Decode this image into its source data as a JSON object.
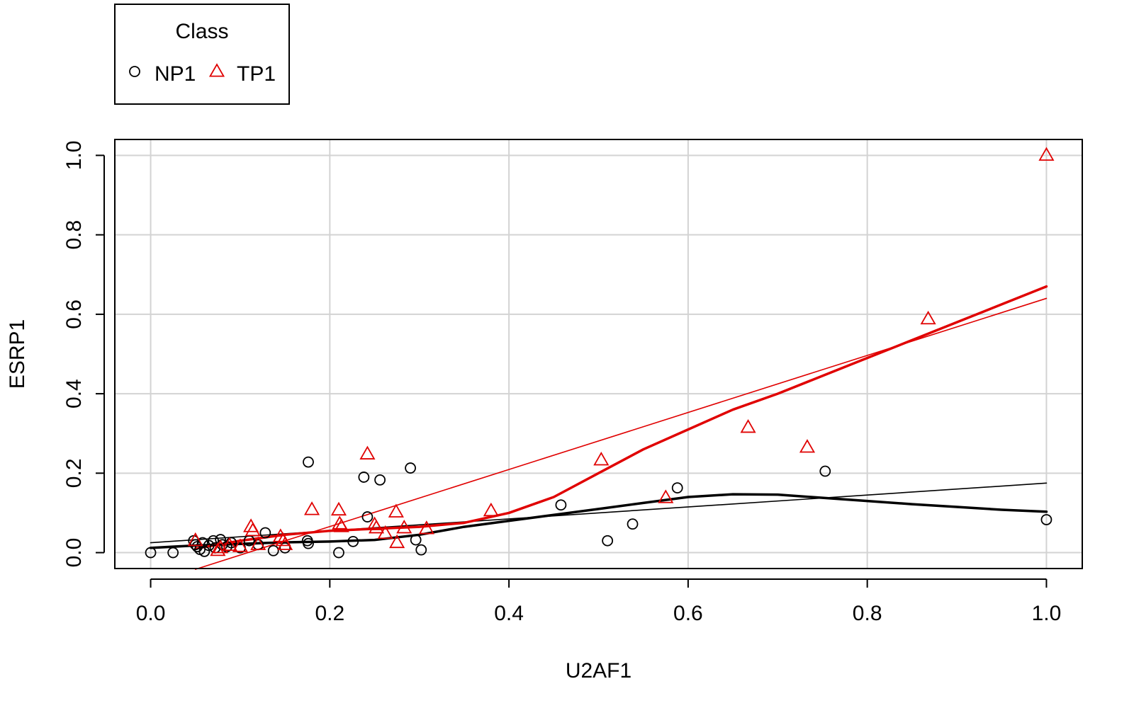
{
  "chart_data": {
    "type": "scatter",
    "title": "",
    "xlabel": "U2AF1",
    "ylabel": "ESRP1",
    "xlim": [
      0,
      1
    ],
    "ylim": [
      -0.04,
      1.04
    ],
    "x_ticks": [
      0.0,
      0.2,
      0.4,
      0.6,
      0.8,
      1.0
    ],
    "x_tick_labels": [
      "0.0",
      "0.2",
      "0.4",
      "0.6",
      "0.8",
      "1.0"
    ],
    "y_ticks": [
      0.0,
      0.2,
      0.4,
      0.6,
      0.8,
      1.0
    ],
    "y_tick_labels": [
      "0.0",
      "0.2",
      "0.4",
      "0.6",
      "0.8",
      "1.0"
    ],
    "grid": true,
    "legend": {
      "title": "Class",
      "placement": "top-left-outside",
      "entries": [
        {
          "name": "NP1",
          "marker": "circle",
          "color": "#000000"
        },
        {
          "name": "TP1",
          "marker": "triangle",
          "color": "#e00000"
        }
      ]
    },
    "series": [
      {
        "name": "NP1",
        "marker": "circle",
        "color": "#000000",
        "points": [
          [
            0.0,
            0.0
          ],
          [
            0.025,
            0.0
          ],
          [
            0.048,
            0.03
          ],
          [
            0.05,
            0.02
          ],
          [
            0.052,
            0.015
          ],
          [
            0.055,
            0.008
          ],
          [
            0.058,
            0.025
          ],
          [
            0.06,
            0.003
          ],
          [
            0.065,
            0.018
          ],
          [
            0.07,
            0.03
          ],
          [
            0.072,
            0.012
          ],
          [
            0.078,
            0.033
          ],
          [
            0.08,
            0.02
          ],
          [
            0.085,
            0.015
          ],
          [
            0.09,
            0.025
          ],
          [
            0.1,
            0.012
          ],
          [
            0.11,
            0.03
          ],
          [
            0.12,
            0.02
          ],
          [
            0.128,
            0.05
          ],
          [
            0.137,
            0.005
          ],
          [
            0.15,
            0.012
          ],
          [
            0.175,
            0.03
          ],
          [
            0.176,
            0.023
          ],
          [
            0.176,
            0.228
          ],
          [
            0.21,
            0.0
          ],
          [
            0.226,
            0.028
          ],
          [
            0.238,
            0.19
          ],
          [
            0.242,
            0.09
          ],
          [
            0.256,
            0.183
          ],
          [
            0.29,
            0.213
          ],
          [
            0.296,
            0.032
          ],
          [
            0.302,
            0.007
          ],
          [
            0.458,
            0.12
          ],
          [
            0.51,
            0.03
          ],
          [
            0.538,
            0.072
          ],
          [
            0.588,
            0.163
          ],
          [
            0.753,
            0.205
          ],
          [
            1.0,
            0.083
          ]
        ]
      },
      {
        "name": "TP1",
        "marker": "triangle",
        "color": "#e00000",
        "points": [
          [
            0.05,
            0.03
          ],
          [
            0.075,
            0.005
          ],
          [
            0.078,
            0.012
          ],
          [
            0.088,
            0.018
          ],
          [
            0.1,
            0.015
          ],
          [
            0.112,
            0.065
          ],
          [
            0.114,
            0.055
          ],
          [
            0.12,
            0.02
          ],
          [
            0.145,
            0.04
          ],
          [
            0.148,
            0.03
          ],
          [
            0.15,
            0.02
          ],
          [
            0.18,
            0.108
          ],
          [
            0.21,
            0.107
          ],
          [
            0.211,
            0.072
          ],
          [
            0.213,
            0.065
          ],
          [
            0.242,
            0.248
          ],
          [
            0.25,
            0.07
          ],
          [
            0.252,
            0.062
          ],
          [
            0.262,
            0.048
          ],
          [
            0.274,
            0.102
          ],
          [
            0.275,
            0.025
          ],
          [
            0.283,
            0.062
          ],
          [
            0.308,
            0.06
          ],
          [
            0.38,
            0.105
          ],
          [
            0.503,
            0.233
          ],
          [
            0.575,
            0.138
          ],
          [
            0.667,
            0.315
          ],
          [
            0.733,
            0.265
          ],
          [
            0.868,
            0.588
          ],
          [
            1.0,
            1.0
          ]
        ]
      }
    ],
    "lines": [
      {
        "name": "NP1 linear fit",
        "color": "#000000",
        "width": "thin",
        "points": [
          [
            0.0,
            0.025
          ],
          [
            1.0,
            0.175
          ]
        ]
      },
      {
        "name": "NP1 smooth fit",
        "color": "#000000",
        "width": "thick",
        "points": [
          [
            0.0,
            0.012
          ],
          [
            0.05,
            0.018
          ],
          [
            0.1,
            0.022
          ],
          [
            0.15,
            0.026
          ],
          [
            0.2,
            0.028
          ],
          [
            0.25,
            0.032
          ],
          [
            0.3,
            0.045
          ],
          [
            0.35,
            0.065
          ],
          [
            0.4,
            0.08
          ],
          [
            0.45,
            0.095
          ],
          [
            0.5,
            0.11
          ],
          [
            0.55,
            0.125
          ],
          [
            0.6,
            0.14
          ],
          [
            0.65,
            0.147
          ],
          [
            0.7,
            0.146
          ],
          [
            0.75,
            0.138
          ],
          [
            0.8,
            0.13
          ],
          [
            0.85,
            0.122
          ],
          [
            0.9,
            0.115
          ],
          [
            0.95,
            0.108
          ],
          [
            1.0,
            0.103
          ]
        ]
      },
      {
        "name": "TP1 linear fit",
        "color": "#e00000",
        "width": "thin",
        "points": [
          [
            0.05,
            -0.042
          ],
          [
            1.0,
            0.64
          ]
        ]
      },
      {
        "name": "TP1 smooth fit",
        "color": "#e00000",
        "width": "thick",
        "points": [
          [
            0.05,
            0.01
          ],
          [
            0.1,
            0.03
          ],
          [
            0.15,
            0.045
          ],
          [
            0.2,
            0.055
          ],
          [
            0.25,
            0.06
          ],
          [
            0.3,
            0.065
          ],
          [
            0.35,
            0.075
          ],
          [
            0.4,
            0.1
          ],
          [
            0.45,
            0.14
          ],
          [
            0.5,
            0.2
          ],
          [
            0.55,
            0.26
          ],
          [
            0.6,
            0.31
          ],
          [
            0.65,
            0.36
          ],
          [
            0.7,
            0.4
          ],
          [
            0.75,
            0.445
          ],
          [
            0.8,
            0.49
          ],
          [
            0.85,
            0.535
          ],
          [
            0.9,
            0.58
          ],
          [
            0.95,
            0.625
          ],
          [
            1.0,
            0.67
          ]
        ]
      }
    ]
  }
}
